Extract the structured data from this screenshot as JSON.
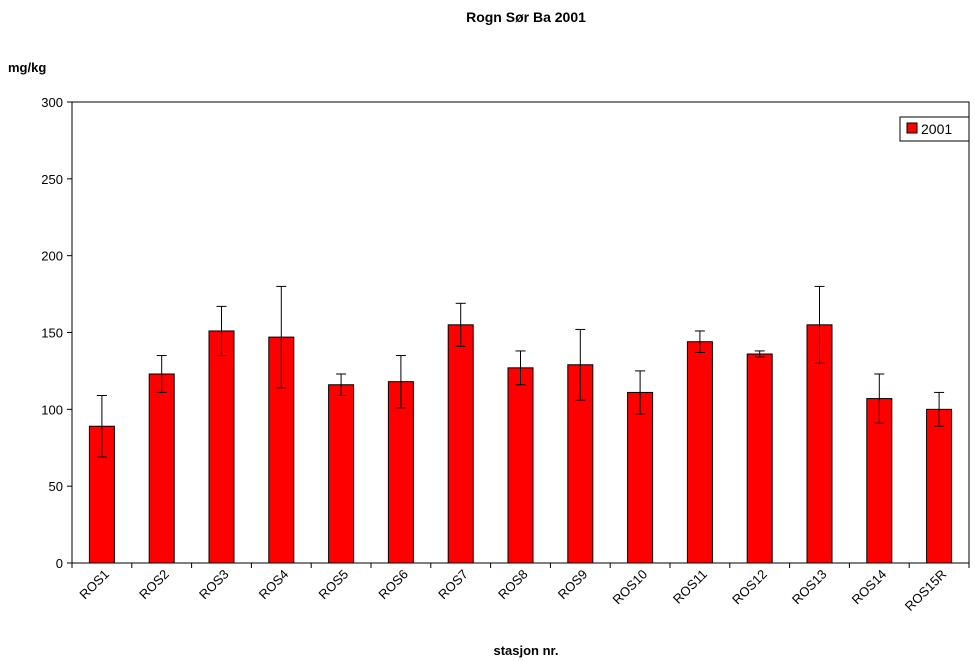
{
  "chart_data": {
    "type": "bar",
    "title": "Rogn Sør Ba 2001",
    "ylabel": "mg/kg",
    "xlabel": "stasjon nr.",
    "ylim": [
      0,
      300
    ],
    "yticks": [
      0,
      50,
      100,
      150,
      200,
      250,
      300
    ],
    "grid": false,
    "legend_position": "top-right",
    "categories": [
      "ROS1",
      "ROS2",
      "ROS3",
      "ROS4",
      "ROS5",
      "ROS6",
      "ROS7",
      "ROS8",
      "ROS9",
      "ROS10",
      "ROS11",
      "ROS12",
      "ROS13",
      "ROS14",
      "ROS15R"
    ],
    "series": [
      {
        "name": "2001",
        "color": "#ff0000",
        "values": [
          89,
          123,
          151,
          147,
          116,
          118,
          155,
          127,
          129,
          111,
          144,
          136,
          155,
          107,
          100
        ],
        "error_low": [
          69,
          111,
          135,
          114,
          109,
          101,
          141,
          116,
          106,
          97,
          137,
          134,
          130,
          91,
          89
        ],
        "error_high": [
          109,
          135,
          167,
          180,
          123,
          135,
          169,
          138,
          152,
          125,
          151,
          138,
          180,
          123,
          111
        ]
      }
    ]
  }
}
